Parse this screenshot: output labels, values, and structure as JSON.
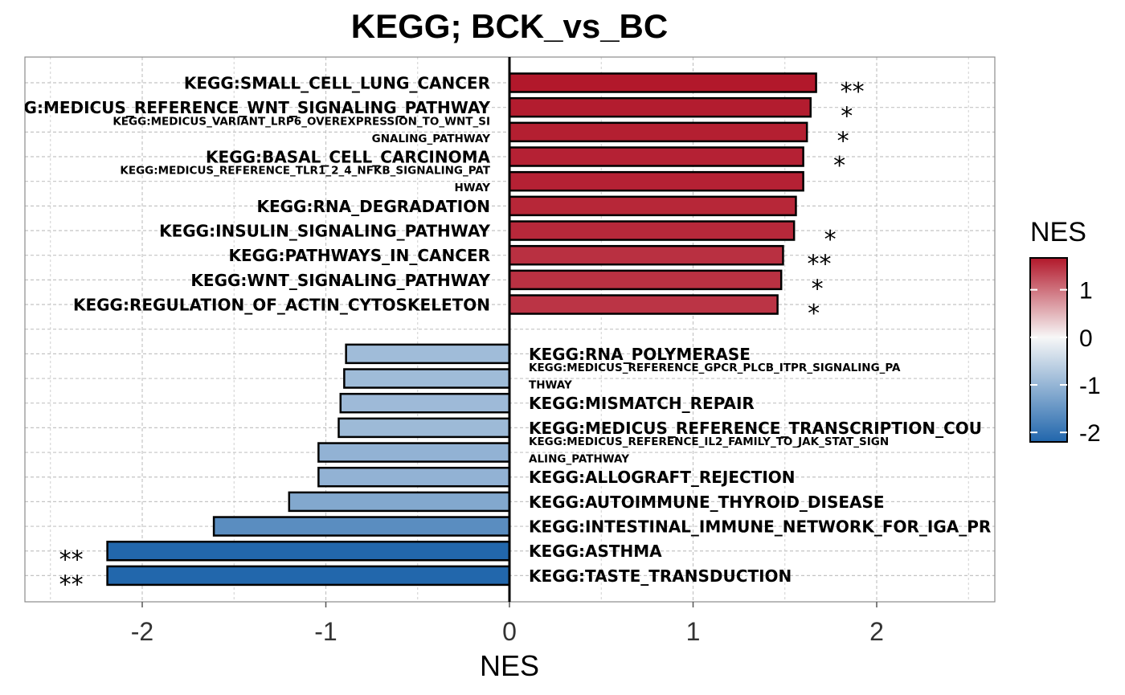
{
  "chart_data": {
    "type": "bar",
    "orientation": "horizontal",
    "title": "KEGG; BCK_vs_BC",
    "xlabel": "NES",
    "ylabel": "",
    "xlim": [
      -2.6,
      2.6
    ],
    "x_ticks": [
      -2,
      -1,
      0,
      1,
      2
    ],
    "x_tick_labels": [
      "-2",
      "-1",
      "0",
      "1",
      "2"
    ],
    "grid": true,
    "legend": {
      "title": "NES",
      "placement": "right",
      "range": [
        -2.2,
        1.67
      ],
      "ticks": [
        1,
        0,
        -1,
        -2
      ],
      "tick_labels": [
        "1",
        "0",
        "-1",
        "-2"
      ],
      "colors": {
        "low": "#2166ac",
        "mid": "#f7f7f7",
        "high": "#b2182b"
      }
    },
    "bars": [
      {
        "lines": [
          "KEGG:SMALL_CELL_LUNG_CANCER"
        ],
        "value": 1.67,
        "sig": "**",
        "size": "large"
      },
      {
        "lines": [
          "KEGG:MEDICUS_REFERENCE_WNT_SIGNALING_PATHWAY"
        ],
        "value": 1.64,
        "sig": "*",
        "size": "large"
      },
      {
        "lines": [
          "KEGG:MEDICUS_VARIANT_LRP6_OVEREXPRESSION_TO_WNT_SI",
          "GNALING_PATHWAY"
        ],
        "value": 1.62,
        "sig": "*",
        "size": "small"
      },
      {
        "lines": [
          "KEGG:BASAL_CELL_CARCINOMA"
        ],
        "value": 1.6,
        "sig": "*",
        "size": "large"
      },
      {
        "lines": [
          "KEGG:MEDICUS_REFERENCE_TLR1_2_4_NFKB_SIGNALING_PAT",
          "HWAY"
        ],
        "value": 1.6,
        "sig": "",
        "size": "small"
      },
      {
        "lines": [
          "KEGG:RNA_DEGRADATION"
        ],
        "value": 1.56,
        "sig": "",
        "size": "large"
      },
      {
        "lines": [
          "KEGG:INSULIN_SIGNALING_PATHWAY"
        ],
        "value": 1.55,
        "sig": "*",
        "size": "large"
      },
      {
        "lines": [
          "KEGG:PATHWAYS_IN_CANCER"
        ],
        "value": 1.49,
        "sig": "**",
        "size": "large"
      },
      {
        "lines": [
          "KEGG:WNT_SIGNALING_PATHWAY"
        ],
        "value": 1.48,
        "sig": "*",
        "size": "large"
      },
      {
        "lines": [
          "KEGG:REGULATION_OF_ACTIN_CYTOSKELETON"
        ],
        "value": 1.46,
        "sig": "*",
        "size": "large"
      },
      {
        "lines": [
          "KEGG:RNA_POLYMERASE"
        ],
        "value": -0.89,
        "sig": "",
        "size": "large"
      },
      {
        "lines": [
          "KEGG:MEDICUS_REFERENCE_GPCR_PLCB_ITPR_SIGNALING_PA",
          "THWAY"
        ],
        "value": -0.9,
        "sig": "",
        "size": "small"
      },
      {
        "lines": [
          "KEGG:MISMATCH_REPAIR"
        ],
        "value": -0.92,
        "sig": "",
        "size": "large"
      },
      {
        "lines": [
          "KEGG:MEDICUS_REFERENCE_TRANSCRIPTION_COU"
        ],
        "value": -0.93,
        "sig": "",
        "size": "large"
      },
      {
        "lines": [
          "KEGG:MEDICUS_REFERENCE_IL2_FAMILY_TO_JAK_STAT_SIGN",
          "ALING_PATHWAY"
        ],
        "value": -1.04,
        "sig": "",
        "size": "small"
      },
      {
        "lines": [
          "KEGG:ALLOGRAFT_REJECTION"
        ],
        "value": -1.04,
        "sig": "",
        "size": "large"
      },
      {
        "lines": [
          "KEGG:AUTOIMMUNE_THYROID_DISEASE"
        ],
        "value": -1.2,
        "sig": "",
        "size": "large"
      },
      {
        "lines": [
          "KEGG:INTESTINAL_IMMUNE_NETWORK_FOR_IGA_PR"
        ],
        "value": -1.61,
        "sig": "",
        "size": "large"
      },
      {
        "lines": [
          "KEGG:ASTHMA"
        ],
        "value": -2.19,
        "sig": "**",
        "size": "large"
      },
      {
        "lines": [
          "KEGG:TASTE_TRANSDUCTION"
        ],
        "value": -2.19,
        "sig": "**",
        "size": "large"
      }
    ]
  }
}
